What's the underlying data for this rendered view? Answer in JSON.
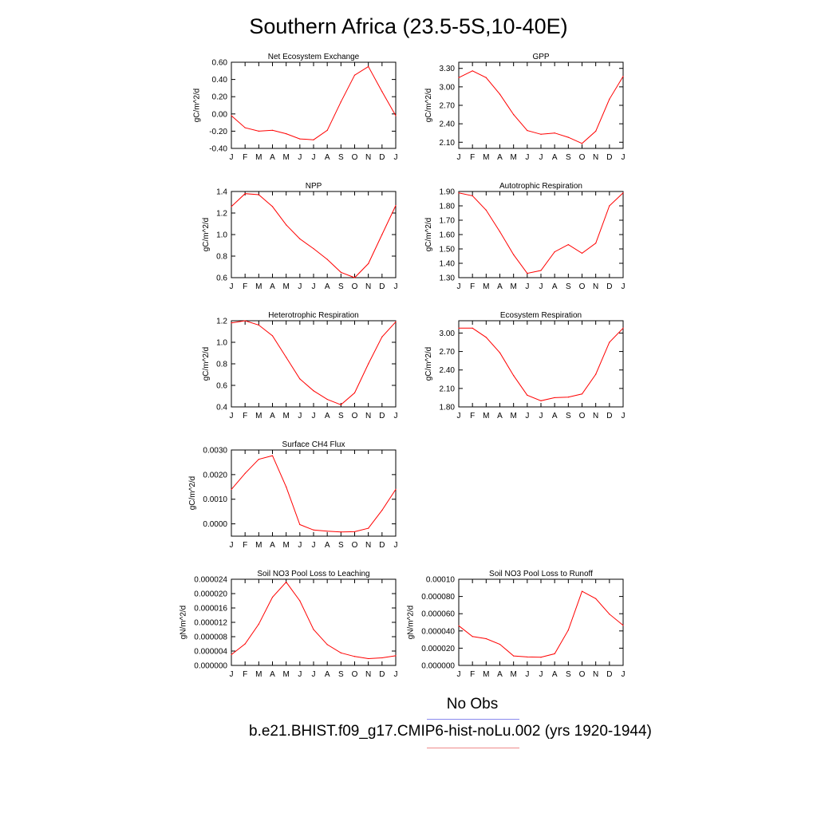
{
  "title": "Southern Africa (23.5-5S,10-40E)",
  "legend": {
    "obs_label": "No Obs",
    "case_label": "b.e21.BHIST.f09_g17.CMIP6-hist-noLu.002 (yrs 1920-1944)",
    "obs_color": "#8a8aee",
    "case_color": "#ee8a8a"
  },
  "chart_data": [
    {
      "type": "line",
      "title": "Net Ecosystem Exchange",
      "ylabel": "gC/m^2/d",
      "x": [
        "J",
        "F",
        "M",
        "A",
        "M",
        "J",
        "J",
        "A",
        "S",
        "O",
        "N",
        "D",
        "J"
      ],
      "ylim": [
        -0.4,
        0.6
      ],
      "yticks": [
        "-0.40",
        "-0.20",
        "0.00",
        "0.20",
        "0.40",
        "0.60"
      ],
      "series": [
        {
          "color": "#ff0000",
          "values": [
            -0.02,
            -0.16,
            -0.2,
            -0.19,
            -0.23,
            -0.29,
            -0.3,
            -0.19,
            0.14,
            0.45,
            0.55,
            0.26,
            -0.02
          ]
        }
      ]
    },
    {
      "type": "line",
      "title": "GPP",
      "ylabel": "gC/m^2/d",
      "x": [
        "J",
        "F",
        "M",
        "A",
        "M",
        "J",
        "J",
        "A",
        "S",
        "O",
        "N",
        "D",
        "J"
      ],
      "ylim": [
        2.0,
        3.4
      ],
      "yticks": [
        "2.10",
        "2.40",
        "2.70",
        "3.00",
        "3.30"
      ],
      "series": [
        {
          "color": "#ff0000",
          "values": [
            3.15,
            3.26,
            3.15,
            2.88,
            2.55,
            2.29,
            2.23,
            2.25,
            2.18,
            2.08,
            2.28,
            2.8,
            3.17
          ]
        }
      ]
    },
    {
      "type": "line",
      "title": "NPP",
      "ylabel": "gC/m^2/d",
      "x": [
        "J",
        "F",
        "M",
        "A",
        "M",
        "J",
        "J",
        "A",
        "S",
        "O",
        "N",
        "D",
        "J"
      ],
      "ylim": [
        0.6,
        1.4
      ],
      "yticks": [
        "0.6",
        "0.8",
        "1.0",
        "1.2",
        "1.4"
      ],
      "series": [
        {
          "color": "#ff0000",
          "values": [
            1.26,
            1.38,
            1.37,
            1.26,
            1.09,
            0.96,
            0.87,
            0.77,
            0.65,
            0.6,
            0.73,
            1.0,
            1.27
          ]
        }
      ]
    },
    {
      "type": "line",
      "title": "Autotrophic Respiration",
      "ylabel": "gC/m^2/d",
      "x": [
        "J",
        "F",
        "M",
        "A",
        "M",
        "J",
        "J",
        "A",
        "S",
        "O",
        "N",
        "D",
        "J"
      ],
      "ylim": [
        1.3,
        1.9
      ],
      "yticks": [
        "1.30",
        "1.40",
        "1.50",
        "1.60",
        "1.70",
        "1.80",
        "1.90"
      ],
      "series": [
        {
          "color": "#ff0000",
          "values": [
            1.89,
            1.87,
            1.77,
            1.62,
            1.46,
            1.33,
            1.35,
            1.48,
            1.53,
            1.47,
            1.54,
            1.8,
            1.89
          ]
        }
      ]
    },
    {
      "type": "line",
      "title": "Heterotrophic Respiration",
      "ylabel": "gC/m^2/d",
      "x": [
        "J",
        "F",
        "M",
        "A",
        "M",
        "J",
        "J",
        "A",
        "S",
        "O",
        "N",
        "D",
        "J"
      ],
      "ylim": [
        0.4,
        1.2
      ],
      "yticks": [
        "0.4",
        "0.6",
        "0.8",
        "1.0",
        "1.2"
      ],
      "series": [
        {
          "color": "#ff0000",
          "values": [
            1.18,
            1.2,
            1.16,
            1.06,
            0.86,
            0.66,
            0.55,
            0.47,
            0.42,
            0.53,
            0.8,
            1.05,
            1.19
          ]
        }
      ]
    },
    {
      "type": "line",
      "title": "Ecosystem Respiration",
      "ylabel": "gC/m^2/d",
      "x": [
        "J",
        "F",
        "M",
        "A",
        "M",
        "J",
        "J",
        "A",
        "S",
        "O",
        "N",
        "D",
        "J"
      ],
      "ylim": [
        1.8,
        3.2
      ],
      "yticks": [
        "1.80",
        "2.10",
        "2.40",
        "2.70",
        "3.00"
      ],
      "series": [
        {
          "color": "#ff0000",
          "values": [
            3.08,
            3.08,
            2.93,
            2.68,
            2.31,
            1.99,
            1.9,
            1.95,
            1.96,
            2.01,
            2.33,
            2.85,
            3.08
          ]
        }
      ]
    },
    {
      "type": "line",
      "title": "Surface CH4 Flux",
      "ylabel": "gC/m^2/d",
      "x": [
        "J",
        "F",
        "M",
        "A",
        "M",
        "J",
        "J",
        "A",
        "S",
        "O",
        "N",
        "D",
        "J"
      ],
      "ylim": [
        -0.0005,
        0.003
      ],
      "yticks": [
        "0.0000",
        "0.0010",
        "0.0020",
        "0.0030"
      ],
      "series": [
        {
          "color": "#ff0000",
          "values": [
            0.0014,
            0.00205,
            0.00262,
            0.00277,
            0.0015,
            -3e-05,
            -0.00025,
            -0.0003,
            -0.00033,
            -0.00032,
            -0.00018,
            0.00055,
            0.0014
          ]
        }
      ]
    },
    {
      "type": "line",
      "title": "Soil NO3 Pool Loss to Leaching",
      "ylabel": "gN/m^2/d",
      "x": [
        "J",
        "F",
        "M",
        "A",
        "M",
        "J",
        "J",
        "A",
        "S",
        "O",
        "N",
        "D",
        "J"
      ],
      "ylim": [
        0.0,
        2.4e-05
      ],
      "yticks": [
        "0.000000",
        "0.000004",
        "0.000008",
        "0.000012",
        "0.000016",
        "0.000020",
        "0.000024"
      ],
      "series": [
        {
          "color": "#ff0000",
          "values": [
            3e-06,
            6e-06,
            1.15e-05,
            1.9e-05,
            2.32e-05,
            1.8e-05,
            1e-05,
            5.8e-06,
            3.5e-06,
            2.5e-06,
            1.9e-06,
            2.1e-06,
            2.7e-06
          ]
        }
      ]
    },
    {
      "type": "line",
      "title": "Soil NO3 Pool Loss to Runoff",
      "ylabel": "gN/m^2/d",
      "x": [
        "J",
        "F",
        "M",
        "A",
        "M",
        "J",
        "J",
        "A",
        "S",
        "O",
        "N",
        "D",
        "J"
      ],
      "ylim": [
        0.0,
        0.0001
      ],
      "yticks": [
        "0.000000",
        "0.000020",
        "0.000040",
        "0.000060",
        "0.000080",
        "0.00010"
      ],
      "series": [
        {
          "color": "#ff0000",
          "values": [
            4.6e-05,
            3.35e-05,
            3.1e-05,
            2.45e-05,
            1.1e-05,
            9.8e-06,
            9.5e-06,
            1.35e-05,
            4.1e-05,
            8.6e-05,
            7.75e-05,
            5.95e-05,
            4.65e-05
          ]
        }
      ]
    }
  ]
}
